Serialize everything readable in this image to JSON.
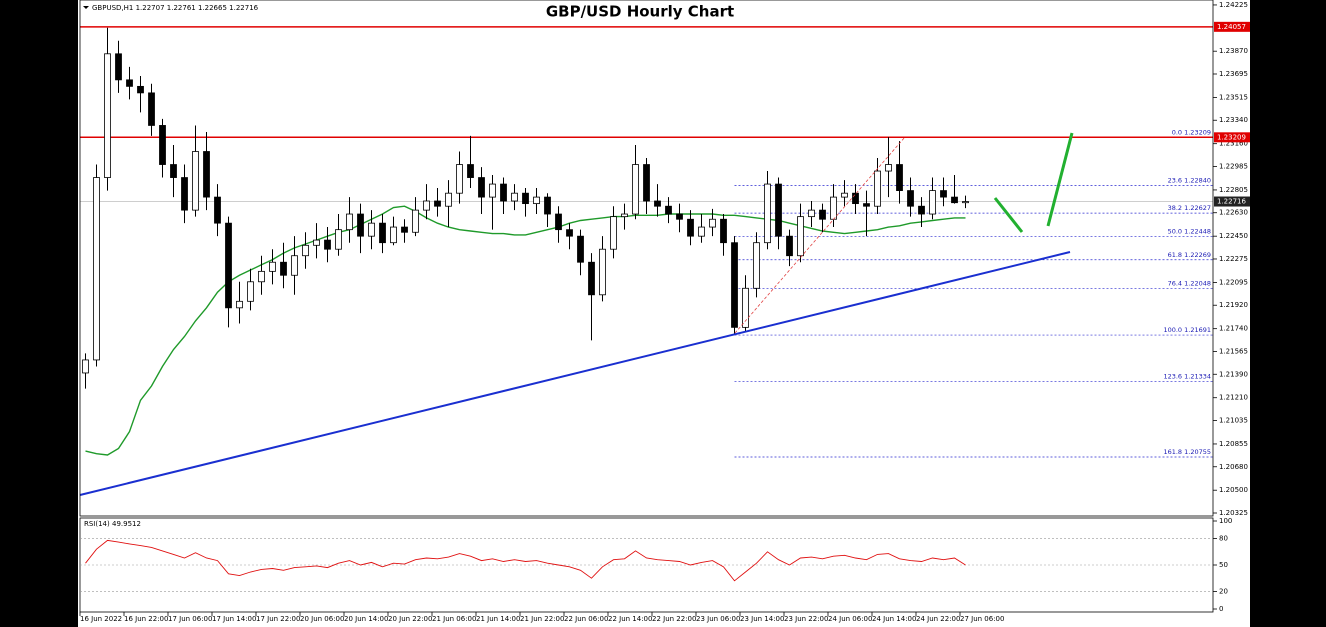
{
  "chart_data": {
    "type": "candlestick",
    "title": "GBP/USD Hourly Chart",
    "symbol": "GBPUSD,H1",
    "x_labels": [
      "16 Jun 2022",
      "16 Jun 22:00",
      "17 Jun 06:00",
      "17 Jun 14:00",
      "17 Jun 22:00",
      "20 Jun 06:00",
      "20 Jun 14:00",
      "20 Jun 22:00",
      "21 Jun 06:00",
      "21 Jun 14:00",
      "21 Jun 22:00",
      "22 Jun 06:00",
      "22 Jun 14:00",
      "22 Jun 22:00",
      "23 Jun 06:00",
      "23 Jun 14:00",
      "23 Jun 22:00",
      "24 Jun 06:00",
      "24 Jun 14:00",
      "24 Jun 22:00",
      "27 Jun 06:00"
    ],
    "ylim": [
      1.20302,
      1.24263
    ],
    "yticks": [
      1.24225,
      {
        "value": 1.2387,
        "label": "1.23870"
      },
      1.23695,
      1.23515,
      {
        "value": 1.2334,
        "label": "1.23340"
      },
      {
        "value": 1.2316,
        "label": "1.23160"
      },
      1.22985,
      1.22805,
      {
        "value": 1.2263,
        "label": "1.22630"
      },
      {
        "value": 1.2245,
        "label": "1.22450"
      },
      1.22275,
      1.22095,
      {
        "value": 1.2192,
        "label": "1.21920"
      },
      {
        "value": 1.2174,
        "label": "1.21740"
      },
      1.21565,
      {
        "value": 1.2139,
        "label": "1.21390"
      },
      {
        "value": 1.2121,
        "label": "1.21210"
      },
      1.21035,
      1.20855,
      {
        "value": 1.2068,
        "label": "1.20680"
      },
      {
        "value": 1.205,
        "label": "1.20500"
      },
      1.20325
    ],
    "ohlc": [
      [
        1.214,
        1.2155,
        1.2128,
        1.215
      ],
      [
        1.215,
        1.23,
        1.2145,
        1.229
      ],
      [
        1.229,
        1.2405,
        1.228,
        1.2385
      ],
      [
        1.2385,
        1.2395,
        1.2355,
        1.2365
      ],
      [
        1.2365,
        1.2375,
        1.235,
        1.236
      ],
      [
        1.236,
        1.2368,
        1.234,
        1.2355
      ],
      [
        1.2355,
        1.2362,
        1.2322,
        1.233
      ],
      [
        1.233,
        1.2335,
        1.229,
        1.23
      ],
      [
        1.23,
        1.2315,
        1.2275,
        1.229
      ],
      [
        1.229,
        1.23,
        1.2255,
        1.2265
      ],
      [
        1.2265,
        1.233,
        1.226,
        1.231
      ],
      [
        1.231,
        1.2325,
        1.2265,
        1.2275
      ],
      [
        1.2275,
        1.2285,
        1.2245,
        1.2255
      ],
      [
        1.2255,
        1.226,
        1.2175,
        1.219
      ],
      [
        1.219,
        1.221,
        1.2178,
        1.2195
      ],
      [
        1.2195,
        1.222,
        1.2188,
        1.221
      ],
      [
        1.221,
        1.223,
        1.22,
        1.2218
      ],
      [
        1.2218,
        1.2235,
        1.2208,
        1.2225
      ],
      [
        1.2225,
        1.224,
        1.2205,
        1.2215
      ],
      [
        1.2215,
        1.2245,
        1.22,
        1.223
      ],
      [
        1.223,
        1.2248,
        1.222,
        1.2238
      ],
      [
        1.2238,
        1.2255,
        1.2228,
        1.2242
      ],
      [
        1.2242,
        1.2252,
        1.2225,
        1.2235
      ],
      [
        1.2235,
        1.2262,
        1.223,
        1.225
      ],
      [
        1.225,
        1.2275,
        1.224,
        1.2262
      ],
      [
        1.2262,
        1.227,
        1.2232,
        1.2245
      ],
      [
        1.2245,
        1.2265,
        1.2235,
        1.2255
      ],
      [
        1.2255,
        1.2262,
        1.2232,
        1.224
      ],
      [
        1.224,
        1.226,
        1.2238,
        1.2252
      ],
      [
        1.2252,
        1.2258,
        1.224,
        1.2248
      ],
      [
        1.2248,
        1.2275,
        1.2245,
        1.2265
      ],
      [
        1.2265,
        1.2285,
        1.2258,
        1.2272
      ],
      [
        1.2272,
        1.2282,
        1.226,
        1.2268
      ],
      [
        1.2268,
        1.2288,
        1.2252,
        1.2278
      ],
      [
        1.2278,
        1.231,
        1.227,
        1.23
      ],
      [
        1.23,
        1.2322,
        1.2282,
        1.229
      ],
      [
        1.229,
        1.2298,
        1.2262,
        1.2275
      ],
      [
        1.2275,
        1.2292,
        1.225,
        1.2285
      ],
      [
        1.2285,
        1.229,
        1.2262,
        1.2272
      ],
      [
        1.2272,
        1.2285,
        1.2265,
        1.2278
      ],
      [
        1.2278,
        1.2282,
        1.226,
        1.227
      ],
      [
        1.227,
        1.2282,
        1.2262,
        1.2275
      ],
      [
        1.2275,
        1.2278,
        1.2252,
        1.2262
      ],
      [
        1.2262,
        1.2268,
        1.224,
        1.225
      ],
      [
        1.225,
        1.2255,
        1.2235,
        1.2245
      ],
      [
        1.2245,
        1.225,
        1.2215,
        1.2225
      ],
      [
        1.2225,
        1.2232,
        1.2165,
        1.22
      ],
      [
        1.22,
        1.2245,
        1.2195,
        1.2235
      ],
      [
        1.2235,
        1.2268,
        1.2228,
        1.226
      ],
      [
        1.226,
        1.227,
        1.225,
        1.2262
      ],
      [
        1.2262,
        1.2315,
        1.2258,
        1.23
      ],
      [
        1.23,
        1.2305,
        1.2262,
        1.2272
      ],
      [
        1.2272,
        1.2285,
        1.226,
        1.2268
      ],
      [
        1.2268,
        1.2275,
        1.2255,
        1.2262
      ],
      [
        1.2262,
        1.227,
        1.2248,
        1.2258
      ],
      [
        1.2258,
        1.2265,
        1.2238,
        1.2245
      ],
      [
        1.2245,
        1.2262,
        1.224,
        1.2252
      ],
      [
        1.2252,
        1.2266,
        1.2245,
        1.2258
      ],
      [
        1.2258,
        1.2262,
        1.223,
        1.224
      ],
      [
        1.224,
        1.2245,
        1.217,
        1.2175
      ],
      [
        1.2175,
        1.2215,
        1.2172,
        1.2205
      ],
      [
        1.2205,
        1.2248,
        1.2198,
        1.224
      ],
      [
        1.224,
        1.2295,
        1.2235,
        1.2285
      ],
      [
        1.2285,
        1.229,
        1.2235,
        1.2245
      ],
      [
        1.2245,
        1.225,
        1.2222,
        1.223
      ],
      [
        1.223,
        1.227,
        1.2225,
        1.226
      ],
      [
        1.226,
        1.2272,
        1.2252,
        1.2265
      ],
      [
        1.2265,
        1.227,
        1.2248,
        1.2258
      ],
      [
        1.2258,
        1.2285,
        1.2252,
        1.2275
      ],
      [
        1.2275,
        1.2288,
        1.2268,
        1.2278
      ],
      [
        1.2278,
        1.2285,
        1.2262,
        1.227
      ],
      [
        1.227,
        1.228,
        1.2245,
        1.2268
      ],
      [
        1.2268,
        1.2305,
        1.2262,
        1.2295
      ],
      [
        1.2295,
        1.2321,
        1.2275,
        1.23
      ],
      [
        1.23,
        1.2318,
        1.227,
        1.228
      ],
      [
        1.228,
        1.229,
        1.226,
        1.2268
      ],
      [
        1.2268,
        1.2275,
        1.2252,
        1.2262
      ],
      [
        1.2262,
        1.229,
        1.2258,
        1.228
      ],
      [
        1.228,
        1.229,
        1.2268,
        1.2275
      ],
      [
        1.2275,
        1.2292,
        1.227,
        1.22707
      ],
      [
        1.22707,
        1.22761,
        1.22665,
        1.22716
      ]
    ],
    "up_color": "#ffffff",
    "down_color": "#000000",
    "wick_color": "#000000",
    "ma": {
      "color": "#1f9a2a",
      "values": [
        1.208,
        1.2078,
        1.2077,
        1.2082,
        1.2095,
        1.2119,
        1.213,
        1.2145,
        1.2158,
        1.2168,
        1.218,
        1.219,
        1.2202,
        1.221,
        1.2215,
        1.2219,
        1.2223,
        1.2227,
        1.2232,
        1.2236,
        1.2239,
        1.2242,
        1.2245,
        1.2248,
        1.225,
        1.2254,
        1.2258,
        1.2262,
        1.2267,
        1.2268,
        1.2264,
        1.2259,
        1.2255,
        1.2252,
        1.225,
        1.2249,
        1.2248,
        1.2247,
        1.2247,
        1.2246,
        1.2246,
        1.2248,
        1.225,
        1.2252,
        1.2255,
        1.2257,
        1.2258,
        1.2259,
        1.226,
        1.226,
        1.2261,
        1.2261,
        1.2261,
        1.2262,
        1.2262,
        1.2262,
        1.2262,
        1.2262,
        1.2261,
        1.2261,
        1.226,
        1.2259,
        1.2258,
        1.2257,
        1.2255,
        1.2253,
        1.2251,
        1.2249,
        1.2248,
        1.2247,
        1.2248,
        1.2249,
        1.225,
        1.2252,
        1.2253,
        1.2255,
        1.2256,
        1.2257,
        1.2258,
        1.2259,
        1.2259
      ]
    },
    "levels": [
      1.24057,
      1.23209
    ],
    "level_color": "#e00000",
    "fibonacci": [
      {
        "label": "0.0 1.23209",
        "price": 1.23209
      },
      {
        "label": "23.6 1.22840",
        "price": 1.2284
      },
      {
        "label": "38.2 1.22627",
        "price": 1.22627
      },
      {
        "label": "50.0 1.22448",
        "price": 1.22448
      },
      {
        "label": "61.8 1.22269",
        "price": 1.22269
      },
      {
        "label": "76.4 1.22048",
        "price": 1.22048
      },
      {
        "label": "100.0 1.21691",
        "price": 1.21691
      },
      {
        "label": "123.6 1.21334",
        "price": 1.21334
      },
      {
        "label": "161.8 1.20755",
        "price": 1.20755
      }
    ],
    "fib_color": "#2a2ad0",
    "rsi": {
      "name": "RSI(14)",
      "color": "#e01010",
      "ylim": [
        0,
        100
      ],
      "yticks": [
        100,
        80,
        50,
        20,
        0
      ],
      "values": [
        52,
        68,
        78,
        76,
        74,
        72,
        70,
        66,
        62,
        58,
        64,
        58,
        55,
        40,
        38,
        42,
        45,
        46,
        44,
        47,
        48,
        49,
        47,
        52,
        55,
        50,
        53,
        48,
        52,
        51,
        56,
        58,
        57,
        59,
        63,
        60,
        55,
        57,
        54,
        56,
        54,
        55,
        52,
        50,
        48,
        44,
        35,
        48,
        56,
        57,
        66,
        58,
        56,
        55,
        54,
        50,
        53,
        55,
        48,
        32,
        42,
        52,
        65,
        56,
        50,
        58,
        59,
        57,
        60,
        61,
        58,
        56,
        62,
        63,
        57,
        55,
        54,
        58,
        56,
        58,
        49.9512
      ]
    }
  }
}
